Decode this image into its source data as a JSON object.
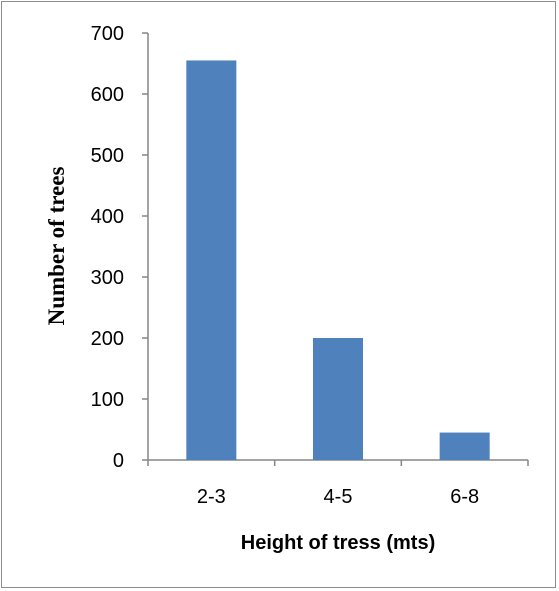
{
  "chart_data": {
    "type": "bar",
    "categories": [
      "2-3",
      "4-5",
      "6-8"
    ],
    "values": [
      655,
      200,
      45
    ],
    "xlabel": "Height of tress (mts)",
    "ylabel": "Number of trees",
    "ylim": [
      0,
      700
    ],
    "yticks": [
      0,
      100,
      200,
      300,
      400,
      500,
      600,
      700
    ],
    "grid": false,
    "bar_color": "#4f81bd",
    "axis_color": "#868686"
  }
}
